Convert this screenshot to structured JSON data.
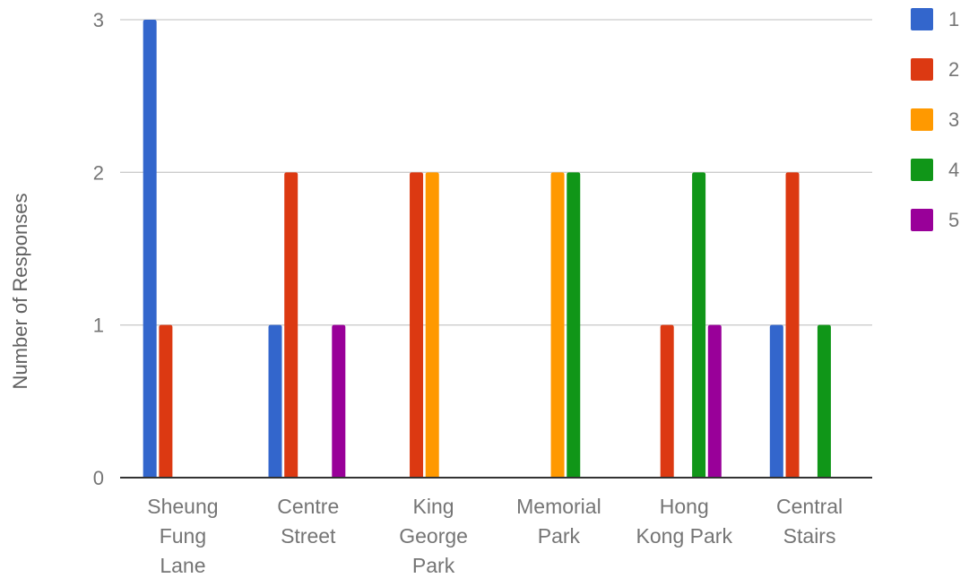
{
  "chart_data": {
    "type": "bar",
    "ylabel": "Number of Responses",
    "xlabel": "",
    "ylim": [
      0,
      3
    ],
    "yticks": [
      "0",
      "1",
      "2",
      "3"
    ],
    "grid": true,
    "legend_position": "right",
    "categories": [
      [
        "Sheung",
        "Fung",
        "Lane"
      ],
      [
        "Centre",
        "Street"
      ],
      [
        "King",
        "George",
        "Park"
      ],
      [
        "Memorial",
        "Park"
      ],
      [
        "Hong",
        "Kong Park"
      ],
      [
        "Central",
        "Stairs"
      ]
    ],
    "series": [
      {
        "name": "1",
        "color": "#3366cc",
        "values": [
          3,
          1,
          0,
          0,
          0,
          1
        ]
      },
      {
        "name": "2",
        "color": "#dc3912",
        "values": [
          1,
          2,
          2,
          0,
          1,
          2
        ]
      },
      {
        "name": "3",
        "color": "#ff9900",
        "values": [
          0,
          0,
          2,
          2,
          0,
          0
        ]
      },
      {
        "name": "4",
        "color": "#109618",
        "values": [
          0,
          0,
          0,
          2,
          2,
          1
        ]
      },
      {
        "name": "5",
        "color": "#990099",
        "values": [
          0,
          1,
          0,
          0,
          1,
          0
        ]
      }
    ]
  }
}
